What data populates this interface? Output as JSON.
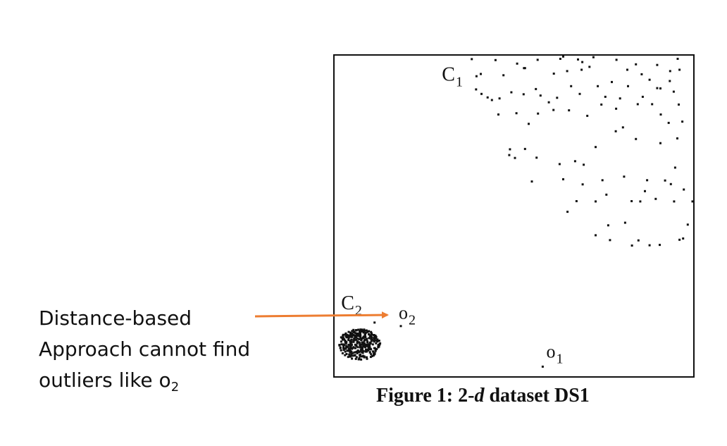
{
  "annotation": {
    "line1": "Distance-based",
    "line2": "Approach cannot find",
    "line3_prefix": "outliers like o",
    "line3_sub": "2",
    "arrow_color": "#ED7D31"
  },
  "figure_caption": {
    "prefix": "Figure 1: 2-",
    "italic": "d",
    "suffix": " dataset DS1"
  },
  "chart_data": {
    "type": "scatter",
    "title": "",
    "xlabel": "",
    "ylabel": "",
    "xlim": [
      0,
      1
    ],
    "ylim": [
      0,
      1
    ],
    "grid": false,
    "labels": [
      {
        "main": "C",
        "sub": "1",
        "x": 0.3,
        "y": 0.92
      },
      {
        "main": "C",
        "sub": "2",
        "x": 0.02,
        "y": 0.21
      },
      {
        "main": "o",
        "sub": "2",
        "x": 0.18,
        "y": 0.18
      },
      {
        "main": "o",
        "sub": "1",
        "x": 0.59,
        "y": 0.06
      }
    ],
    "series": [
      {
        "points": [
          [
            0.383,
            0.987
          ],
          [
            0.449,
            0.984
          ],
          [
            0.509,
            0.973
          ],
          [
            0.531,
            0.959
          ],
          [
            0.566,
            0.985
          ],
          [
            0.629,
            0.988
          ],
          [
            0.637,
            0.995
          ],
          [
            0.678,
            0.986
          ],
          [
            0.69,
            0.978
          ],
          [
            0.721,
            0.993
          ],
          [
            0.785,
            0.985
          ],
          [
            0.839,
            0.971
          ],
          [
            0.898,
            0.969
          ],
          [
            0.934,
            0.95
          ],
          [
            0.955,
            0.988
          ],
          [
            0.396,
            0.934
          ],
          [
            0.408,
            0.941
          ],
          [
            0.471,
            0.937
          ],
          [
            0.528,
            0.959
          ],
          [
            0.611,
            0.942
          ],
          [
            0.648,
            0.95
          ],
          [
            0.688,
            0.954
          ],
          [
            0.71,
            0.963
          ],
          [
            0.772,
            0.916
          ],
          [
            0.815,
            0.954
          ],
          [
            0.855,
            0.94
          ],
          [
            0.877,
            0.923
          ],
          [
            0.907,
            0.896
          ],
          [
            0.933,
            0.919
          ],
          [
            0.96,
            0.954
          ],
          [
            0.395,
            0.893
          ],
          [
            0.41,
            0.879
          ],
          [
            0.427,
            0.868
          ],
          [
            0.439,
            0.86
          ],
          [
            0.46,
            0.865
          ],
          [
            0.493,
            0.884
          ],
          [
            0.527,
            0.878
          ],
          [
            0.561,
            0.894
          ],
          [
            0.574,
            0.874
          ],
          [
            0.597,
            0.853
          ],
          [
            0.62,
            0.867
          ],
          [
            0.659,
            0.903
          ],
          [
            0.683,
            0.879
          ],
          [
            0.733,
            0.903
          ],
          [
            0.754,
            0.87
          ],
          [
            0.795,
            0.865
          ],
          [
            0.817,
            0.903
          ],
          [
            0.858,
            0.87
          ],
          [
            0.898,
            0.897
          ],
          [
            0.944,
            0.886
          ],
          [
            0.457,
            0.815
          ],
          [
            0.507,
            0.819
          ],
          [
            0.541,
            0.786
          ],
          [
            0.567,
            0.818
          ],
          [
            0.61,
            0.829
          ],
          [
            0.653,
            0.828
          ],
          [
            0.704,
            0.811
          ],
          [
            0.743,
            0.846
          ],
          [
            0.784,
            0.833
          ],
          [
            0.844,
            0.847
          ],
          [
            0.884,
            0.847
          ],
          [
            0.908,
            0.815
          ],
          [
            0.958,
            0.846
          ],
          [
            0.954,
            0.741
          ],
          [
            0.93,
            0.789
          ],
          [
            0.968,
            0.793
          ],
          [
            0.489,
            0.707
          ],
          [
            0.487,
            0.689
          ],
          [
            0.503,
            0.68
          ],
          [
            0.531,
            0.708
          ],
          [
            0.563,
            0.681
          ],
          [
            0.627,
            0.661
          ],
          [
            0.67,
            0.67
          ],
          [
            0.694,
            0.659
          ],
          [
            0.727,
            0.714
          ],
          [
            0.783,
            0.763
          ],
          [
            0.803,
            0.775
          ],
          [
            0.839,
            0.739
          ],
          [
            0.907,
            0.726
          ],
          [
            0.948,
            0.65
          ],
          [
            0.55,
            0.607
          ],
          [
            0.637,
            0.614
          ],
          [
            0.691,
            0.598
          ],
          [
            0.746,
            0.611
          ],
          [
            0.806,
            0.622
          ],
          [
            0.864,
            0.577
          ],
          [
            0.92,
            0.61
          ],
          [
            0.972,
            0.582
          ],
          [
            0.649,
            0.513
          ],
          [
            0.674,
            0.546
          ],
          [
            0.727,
            0.545
          ],
          [
            0.757,
            0.566
          ],
          [
            0.827,
            0.546
          ],
          [
            0.851,
            0.545
          ],
          [
            0.87,
            0.611
          ],
          [
            0.936,
            0.599
          ],
          [
            0.945,
            0.545
          ],
          [
            0.996,
            0.545
          ],
          [
            0.762,
            0.471
          ],
          [
            0.809,
            0.479
          ],
          [
            0.894,
            0.553
          ],
          [
            0.983,
            0.473
          ],
          [
            0.727,
            0.44
          ],
          [
            0.767,
            0.425
          ],
          [
            0.828,
            0.408
          ],
          [
            0.846,
            0.424
          ],
          [
            0.877,
            0.409
          ],
          [
            0.905,
            0.41
          ],
          [
            0.96,
            0.426
          ],
          [
            0.97,
            0.43
          ]
        ]
      },
      {
        "points": [
          [
            0.113,
            0.169
          ],
          [
            0.05,
            0.124
          ],
          [
            0.047,
            0.105
          ],
          [
            0.047,
            0.092
          ],
          [
            0.093,
            0.107
          ],
          [
            0.094,
            0.082
          ],
          [
            0.091,
            0.061
          ],
          [
            0.059,
            0.068
          ],
          [
            0.061,
            0.056
          ],
          [
            0.072,
            0.079
          ],
          [
            0.076,
            0.142
          ],
          [
            0.084,
            0.147
          ],
          [
            0.097,
            0.142
          ]
        ]
      },
      {
        "points": [
          [
            0.186,
            0.158
          ]
        ]
      },
      {
        "points": [
          [
            0.58,
            0.032
          ]
        ]
      }
    ]
  }
}
